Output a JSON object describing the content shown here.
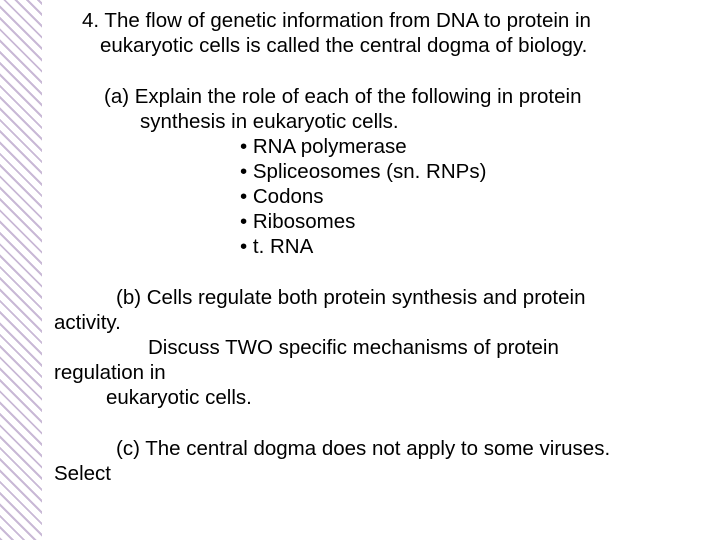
{
  "question": {
    "main_line1": "4. The flow of genetic information from DNA to protein in",
    "main_line2": "eukaryotic cells is called the central dogma of biology.",
    "part_a": {
      "line1": "(a) Explain the role of each of the following in protein",
      "line2": "synthesis in eukaryotic cells.",
      "bullets": [
        "• RNA polymerase",
        "• Spliceosomes (sn. RNPs)",
        "• Codons",
        "• Ribosomes",
        "• t. RNA"
      ]
    },
    "part_b": {
      "line1": "(b) Cells regulate both protein synthesis and protein",
      "line2": "activity.",
      "line3": "Discuss TWO specific mechanisms of protein",
      "line4": "regulation in",
      "line5": "eukaryotic cells."
    },
    "part_c": {
      "line1": "(c) The central dogma does not apply to some viruses.",
      "line2": "Select"
    }
  },
  "colors": {
    "text": "#000000",
    "background": "#ffffff",
    "border_stripe_a": "#c9b9d6",
    "border_stripe_b": "#ffffff"
  },
  "typography": {
    "font_family": "Arial",
    "font_size_pt": 16,
    "line_height": 1.22
  }
}
